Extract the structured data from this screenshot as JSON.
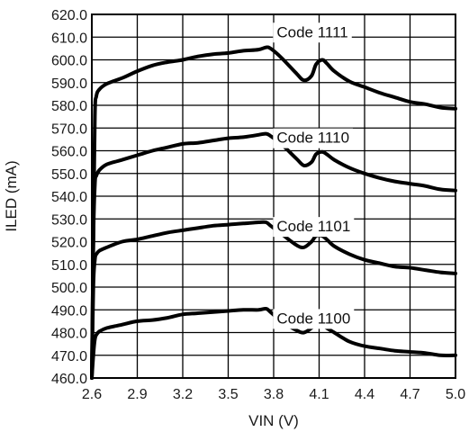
{
  "chart_data": {
    "type": "line",
    "xlabel": "VIN (V)",
    "ylabel": "ILED (mA)",
    "xlim": [
      2.6,
      5.0
    ],
    "ylim": [
      460.0,
      620.0
    ],
    "x_ticks": [
      "2.6",
      "2.9",
      "3.2",
      "3.5",
      "3.8",
      "4.1",
      "4.4",
      "4.7",
      "5.0"
    ],
    "y_ticks": [
      "460.0",
      "470.0",
      "480.0",
      "490.0",
      "500.0",
      "510.0",
      "520.0",
      "530.0",
      "540.0",
      "550.0",
      "560.0",
      "570.0",
      "580.0",
      "590.0",
      "600.0",
      "610.0",
      "620.0"
    ],
    "grid": true,
    "line_color": "#000000",
    "series": [
      {
        "name": "Code 1111",
        "label_at": [
          3.82,
          610.0
        ],
        "x": [
          2.6,
          2.61,
          2.62,
          2.63,
          2.65,
          2.7,
          2.8,
          2.9,
          3.0,
          3.1,
          3.2,
          3.3,
          3.4,
          3.5,
          3.6,
          3.7,
          3.75,
          3.78,
          3.85,
          3.95,
          4.0,
          4.05,
          4.08,
          4.12,
          4.15,
          4.2,
          4.3,
          4.4,
          4.5,
          4.6,
          4.7,
          4.8,
          4.9,
          5.0
        ],
        "values": [
          460.0,
          520.0,
          575.0,
          584.0,
          587.0,
          589.5,
          592.0,
          595.0,
          597.5,
          599.0,
          600.0,
          601.5,
          602.5,
          603.0,
          604.0,
          604.5,
          605.5,
          605.0,
          601.0,
          594.0,
          591.0,
          593.0,
          598.0,
          600.0,
          598.5,
          595.0,
          590.5,
          588.0,
          585.5,
          583.5,
          581.5,
          580.5,
          579.0,
          578.5
        ]
      },
      {
        "name": "Code 1110",
        "label_at": [
          3.82,
          563.5
        ],
        "x": [
          2.6,
          2.61,
          2.62,
          2.63,
          2.65,
          2.7,
          2.8,
          2.9,
          3.0,
          3.1,
          3.2,
          3.3,
          3.4,
          3.5,
          3.6,
          3.7,
          3.75,
          3.78,
          3.85,
          3.95,
          4.0,
          4.05,
          4.08,
          4.12,
          4.15,
          4.2,
          4.3,
          4.4,
          4.5,
          4.6,
          4.7,
          4.8,
          4.9,
          5.0
        ],
        "values": [
          460.0,
          520.0,
          545.0,
          549.0,
          551.5,
          554.0,
          556.0,
          558.0,
          560.0,
          561.5,
          563.0,
          563.5,
          564.5,
          565.5,
          566.0,
          567.0,
          567.5,
          566.5,
          563.0,
          556.5,
          553.5,
          555.0,
          558.5,
          559.5,
          558.5,
          556.0,
          552.5,
          550.0,
          548.0,
          546.5,
          545.5,
          544.5,
          543.0,
          542.5
        ]
      },
      {
        "name": "Code 1101",
        "label_at": [
          3.82,
          524.5
        ],
        "x": [
          2.6,
          2.61,
          2.62,
          2.63,
          2.65,
          2.7,
          2.8,
          2.9,
          3.0,
          3.1,
          3.2,
          3.3,
          3.4,
          3.5,
          3.6,
          3.7,
          3.75,
          3.78,
          3.85,
          3.95,
          4.0,
          4.05,
          4.08,
          4.12,
          4.15,
          4.2,
          4.3,
          4.4,
          4.5,
          4.6,
          4.7,
          4.8,
          4.9,
          5.0
        ],
        "values": [
          460.0,
          500.0,
          512.0,
          514.5,
          516.0,
          517.5,
          520.0,
          521.0,
          522.5,
          524.0,
          525.0,
          526.0,
          527.0,
          527.5,
          528.0,
          528.5,
          528.5,
          527.0,
          523.5,
          518.5,
          517.5,
          520.0,
          522.5,
          522.5,
          521.0,
          518.0,
          514.5,
          512.0,
          510.5,
          509.0,
          508.5,
          507.5,
          506.5,
          506.0
        ]
      },
      {
        "name": "Code 1100",
        "label_at": [
          3.82,
          484.0
        ],
        "x": [
          2.6,
          2.61,
          2.62,
          2.63,
          2.65,
          2.7,
          2.8,
          2.9,
          3.0,
          3.1,
          3.2,
          3.3,
          3.4,
          3.5,
          3.6,
          3.7,
          3.75,
          3.78,
          3.85,
          3.95,
          4.0,
          4.05,
          4.08,
          4.12,
          4.15,
          4.2,
          4.3,
          4.4,
          4.5,
          4.6,
          4.7,
          4.8,
          4.9,
          5.0
        ],
        "values": [
          460.0,
          470.0,
          477.0,
          479.0,
          480.5,
          482.0,
          483.5,
          485.0,
          485.5,
          486.5,
          488.0,
          488.5,
          489.0,
          489.5,
          490.0,
          490.0,
          490.5,
          489.0,
          485.0,
          481.0,
          480.0,
          482.0,
          484.0,
          483.5,
          482.0,
          480.0,
          476.0,
          474.0,
          473.0,
          472.0,
          471.5,
          471.0,
          470.0,
          470.0
        ]
      }
    ]
  }
}
